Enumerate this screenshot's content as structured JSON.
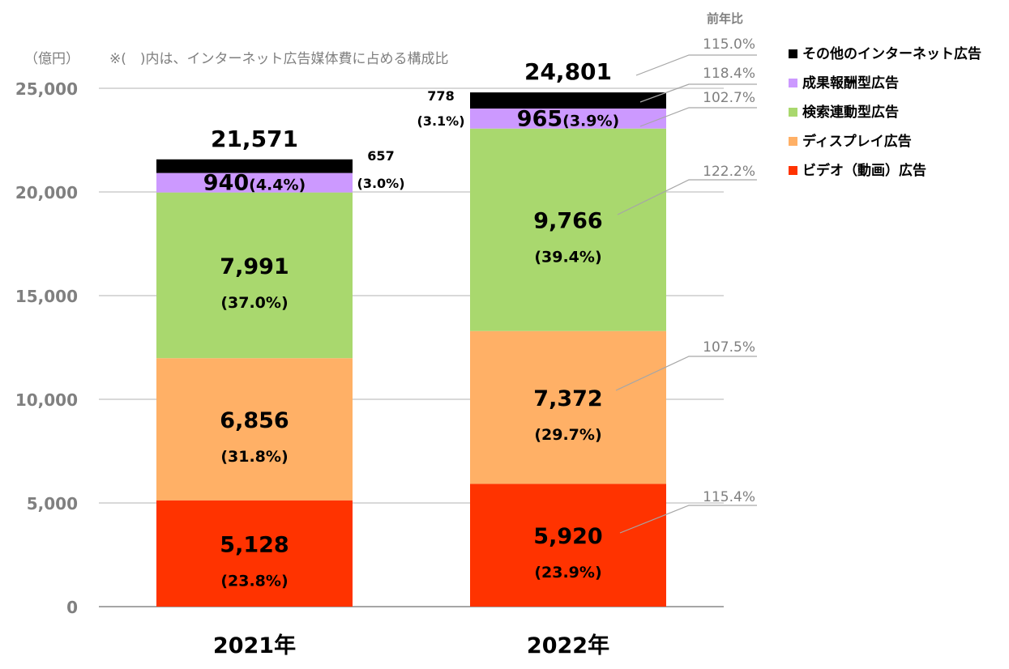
{
  "chart_data": {
    "type": "bar",
    "stacked": true,
    "unit_label": "（億円）",
    "note": "※(　)内は、インターネット広告媒体費に占める構成比",
    "yoy_header": "前年比",
    "ylim": [
      0,
      25000
    ],
    "yticks": [
      "0",
      "5,000",
      "10,000",
      "15,000",
      "20,000",
      "25,000"
    ],
    "ytick_values": [
      0,
      5000,
      10000,
      15000,
      20000,
      25000
    ],
    "categories": [
      "2021年",
      "2022年"
    ],
    "totals": [
      21571,
      24801
    ],
    "total_labels": [
      "21,571",
      "24,801"
    ],
    "series": [
      {
        "name": "ビデオ（動画）広告",
        "color": "#ff3300",
        "values": [
          5128,
          5920
        ],
        "value_labels": [
          "5,128",
          "5,920"
        ],
        "pct_labels": [
          "(23.8%)",
          "(23.9%)"
        ],
        "yoy": "115.4%"
      },
      {
        "name": "ディスプレイ広告",
        "color": "#ffb066",
        "values": [
          6856,
          7372
        ],
        "value_labels": [
          "6,856",
          "7,372"
        ],
        "pct_labels": [
          "(31.8%)",
          "(29.7%)"
        ],
        "yoy": "107.5%"
      },
      {
        "name": "検索連動型広告",
        "color": "#a9d86e",
        "values": [
          7991,
          9766
        ],
        "value_labels": [
          "7,991",
          "9,766"
        ],
        "pct_labels": [
          "(37.0%)",
          "(39.4%)"
        ],
        "yoy": "122.2%"
      },
      {
        "name": "成果報酬型広告",
        "color": "#cc99ff",
        "values": [
          940,
          965
        ],
        "value_labels": [
          "940",
          "965"
        ],
        "pct_labels": [
          "(4.4%)",
          "(3.9%)"
        ],
        "yoy": "102.7%"
      },
      {
        "name": "その他のインターネット広告",
        "color": "#000000",
        "values": [
          657,
          778
        ],
        "value_labels": [
          "657",
          "778"
        ],
        "pct_labels": [
          "(3.0%)",
          "(3.1%)"
        ],
        "yoy": "118.4%"
      }
    ],
    "total_yoy": "115.0%"
  }
}
